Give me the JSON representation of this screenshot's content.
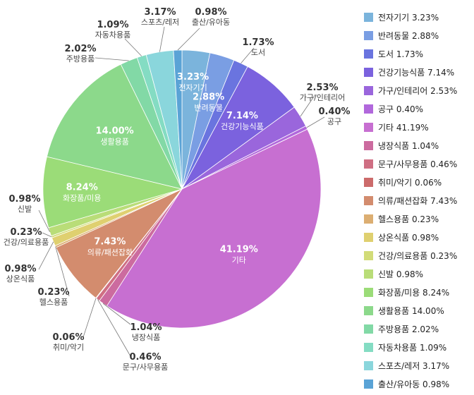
{
  "chart_data": {
    "type": "pie",
    "slices": [
      {
        "name": "전자기기",
        "value": 3.23,
        "value_label": "3.23%",
        "color": "#7bb4dc"
      },
      {
        "name": "반려동물",
        "value": 2.88,
        "value_label": "2.88%",
        "color": "#7a9ee3"
      },
      {
        "name": "도서",
        "value": 1.73,
        "value_label": "1.73%",
        "color": "#6a74df"
      },
      {
        "name": "건강기능식품",
        "value": 7.14,
        "value_label": "7.14%",
        "color": "#7b62de"
      },
      {
        "name": "가구/인테리어",
        "value": 2.53,
        "value_label": "2.53%",
        "color": "#9a66dc"
      },
      {
        "name": "공구",
        "value": 0.4,
        "value_label": "0.40%",
        "color": "#b168dc"
      },
      {
        "name": "기타",
        "value": 41.19,
        "value_label": "41.19%",
        "color": "#c76fd1"
      },
      {
        "name": "냉장식품",
        "value": 1.04,
        "value_label": "1.04%",
        "color": "#cc6b9f"
      },
      {
        "name": "문구/사무용품",
        "value": 0.46,
        "value_label": "0.46%",
        "color": "#cf6f83"
      },
      {
        "name": "취미/악기",
        "value": 0.06,
        "value_label": "0.06%",
        "color": "#cc6b6b"
      },
      {
        "name": "의류/패션잡화",
        "value": 7.43,
        "value_label": "7.43%",
        "color": "#d38c6e"
      },
      {
        "name": "헬스용품",
        "value": 0.23,
        "value_label": "0.23%",
        "color": "#dcae72"
      },
      {
        "name": "상온식품",
        "value": 0.98,
        "value_label": "0.98%",
        "color": "#dfd070"
      },
      {
        "name": "건강/의료용품",
        "value": 0.23,
        "value_label": "0.23%",
        "color": "#d2dc78"
      },
      {
        "name": "신발",
        "value": 0.98,
        "value_label": "0.98%",
        "color": "#b9dd78"
      },
      {
        "name": "화장품/미용",
        "value": 8.24,
        "value_label": "8.24%",
        "color": "#9bdc78"
      },
      {
        "name": "생활용품",
        "value": 14.0,
        "value_label": "14.00%",
        "color": "#8cd98b"
      },
      {
        "name": "주방용품",
        "value": 2.02,
        "value_label": "2.02%",
        "color": "#82d9a6"
      },
      {
        "name": "자동차용품",
        "value": 1.09,
        "value_label": "1.09%",
        "color": "#84dcc3"
      },
      {
        "name": "스포츠/레저",
        "value": 3.17,
        "value_label": "3.17%",
        "color": "#8ad6dc"
      },
      {
        "name": "출산/유아동",
        "value": 0.98,
        "value_label": "0.98%",
        "color": "#5aa3d6"
      }
    ],
    "legend": {
      "position": "right",
      "items": [
        "전자기기 3.23%",
        "반려동물 2.88%",
        "도서 1.73%",
        "건강기능식품 7.14%",
        "가구/인테리어 2.53%",
        "공구 0.40%",
        "기타 41.19%",
        "냉장식품 1.04%",
        "문구/사무용품 0.46%",
        "취미/악기 0.06%",
        "의류/패션잡화 7.43%",
        "헬스용품 0.23%",
        "상온식품 0.98%",
        "건강/의료용품 0.23%",
        "신발 0.98%",
        "화장품/미용 8.24%",
        "생활용품 14.00%",
        "주방용품 2.02%",
        "자동차용품 1.09%",
        "스포츠/레저 3.17%",
        "출산/유아동 0.98%"
      ]
    },
    "start_angle_deg": 0,
    "direction": "clockwise"
  }
}
